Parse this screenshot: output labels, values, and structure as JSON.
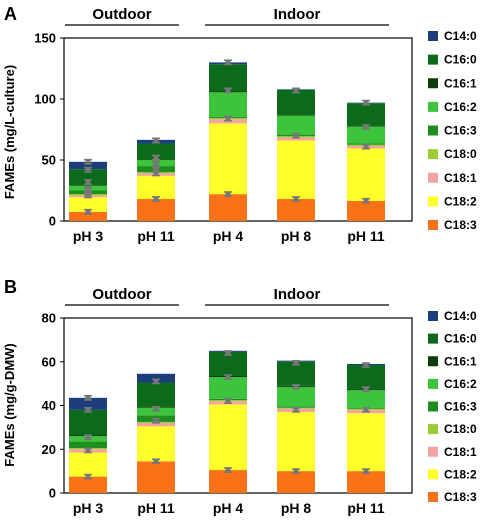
{
  "chart_data": [
    {
      "type": "bar",
      "stacked": true,
      "panel_label": "A",
      "ylabel": "FAMEs (mg/L-culture)",
      "ylim": [
        0,
        150
      ],
      "yticks": [
        0,
        50,
        100,
        150
      ],
      "categories": [
        "pH 3",
        "pH 11",
        "pH 4",
        "pH 8",
        "pH 11"
      ],
      "group_labels": [
        {
          "label": "Outdoor",
          "from": 0,
          "to": 1
        },
        {
          "label": "Indoor",
          "from": 2,
          "to": 4
        }
      ],
      "legend_position": "right",
      "series": [
        {
          "name": "C18:3",
          "color": "#f97316",
          "values": [
            7.5,
            18,
            22,
            18,
            16.5
          ]
        },
        {
          "name": "C18:2",
          "color": "#ffff29",
          "values": [
            12,
            19,
            58,
            48,
            43
          ]
        },
        {
          "name": "C18:1",
          "color": "#f4a3a3",
          "values": [
            1.5,
            2,
            3.5,
            2.5,
            2
          ]
        },
        {
          "name": "C18:0",
          "color": "#9acd32",
          "values": [
            1,
            1,
            1,
            1,
            1
          ]
        },
        {
          "name": "C16:3",
          "color": "#1e8f1e",
          "values": [
            3,
            5,
            1,
            1,
            1
          ]
        },
        {
          "name": "C16:2",
          "color": "#3cc43c",
          "values": [
            4,
            5,
            20,
            16,
            14
          ]
        },
        {
          "name": "C16:1",
          "color": "#0a3d0a",
          "values": [
            0.5,
            0.5,
            1,
            1,
            1
          ]
        },
        {
          "name": "C16:0",
          "color": "#0b6b1b",
          "values": [
            13,
            13,
            22,
            20,
            18
          ]
        },
        {
          "name": "C14:0",
          "color": "#1c3f7c",
          "values": [
            6,
            3,
            1.5,
            0.5,
            0.5
          ]
        }
      ],
      "error_at": [
        [
          7.5,
          21,
          23,
          26,
          32,
          42,
          48.5
        ],
        [
          18,
          39,
          42,
          47,
          52,
          66
        ],
        [
          22,
          84,
          107,
          130
        ],
        [
          18,
          70,
          107
        ],
        [
          16.5,
          61,
          77,
          97
        ]
      ]
    },
    {
      "type": "bar",
      "stacked": true,
      "panel_label": "B",
      "ylabel": "FAMEs (mg/g-DMW)",
      "ylim": [
        0,
        80
      ],
      "yticks": [
        0,
        20,
        40,
        60,
        80
      ],
      "categories": [
        "pH 3",
        "pH 11",
        "pH 4",
        "pH 8",
        "pH 11"
      ],
      "group_labels": [
        {
          "label": "Outdoor",
          "from": 0,
          "to": 1
        },
        {
          "label": "Indoor",
          "from": 2,
          "to": 4
        }
      ],
      "legend_position": "right",
      "series": [
        {
          "name": "C18:3",
          "color": "#f97316",
          "values": [
            7.5,
            14.5,
            10.5,
            10,
            10
          ]
        },
        {
          "name": "C18:2",
          "color": "#ffff29",
          "values": [
            11,
            16,
            30,
            27,
            26.5
          ]
        },
        {
          "name": "C18:1",
          "color": "#f4a3a3",
          "values": [
            1.5,
            1.5,
            1.5,
            1.5,
            1.5
          ]
        },
        {
          "name": "C18:0",
          "color": "#9acd32",
          "values": [
            0.5,
            0.5,
            0.5,
            0.5,
            0.5
          ]
        },
        {
          "name": "C16:3",
          "color": "#1e8f1e",
          "values": [
            3,
            3,
            0.5,
            0.5,
            0.5
          ]
        },
        {
          "name": "C16:2",
          "color": "#3cc43c",
          "values": [
            2.5,
            3.5,
            10,
            9,
            8
          ]
        },
        {
          "name": "C16:1",
          "color": "#0a3d0a",
          "values": [
            0.5,
            0.5,
            0.5,
            0.5,
            0.5
          ]
        },
        {
          "name": "C16:0",
          "color": "#0b6b1b",
          "values": [
            11.5,
            11,
            11,
            11,
            11
          ]
        },
        {
          "name": "C14:0",
          "color": "#1c3f7c",
          "values": [
            5.5,
            4,
            0.5,
            0.5,
            0.5
          ]
        }
      ],
      "error_at": [
        [
          7.5,
          19.5,
          25.5,
          38,
          43.5
        ],
        [
          14.5,
          33,
          38.5,
          51
        ],
        [
          10.5,
          42,
          53,
          64
        ],
        [
          10,
          38,
          48.5,
          59.5
        ],
        [
          10,
          38,
          47.5,
          58.5
        ]
      ]
    }
  ]
}
